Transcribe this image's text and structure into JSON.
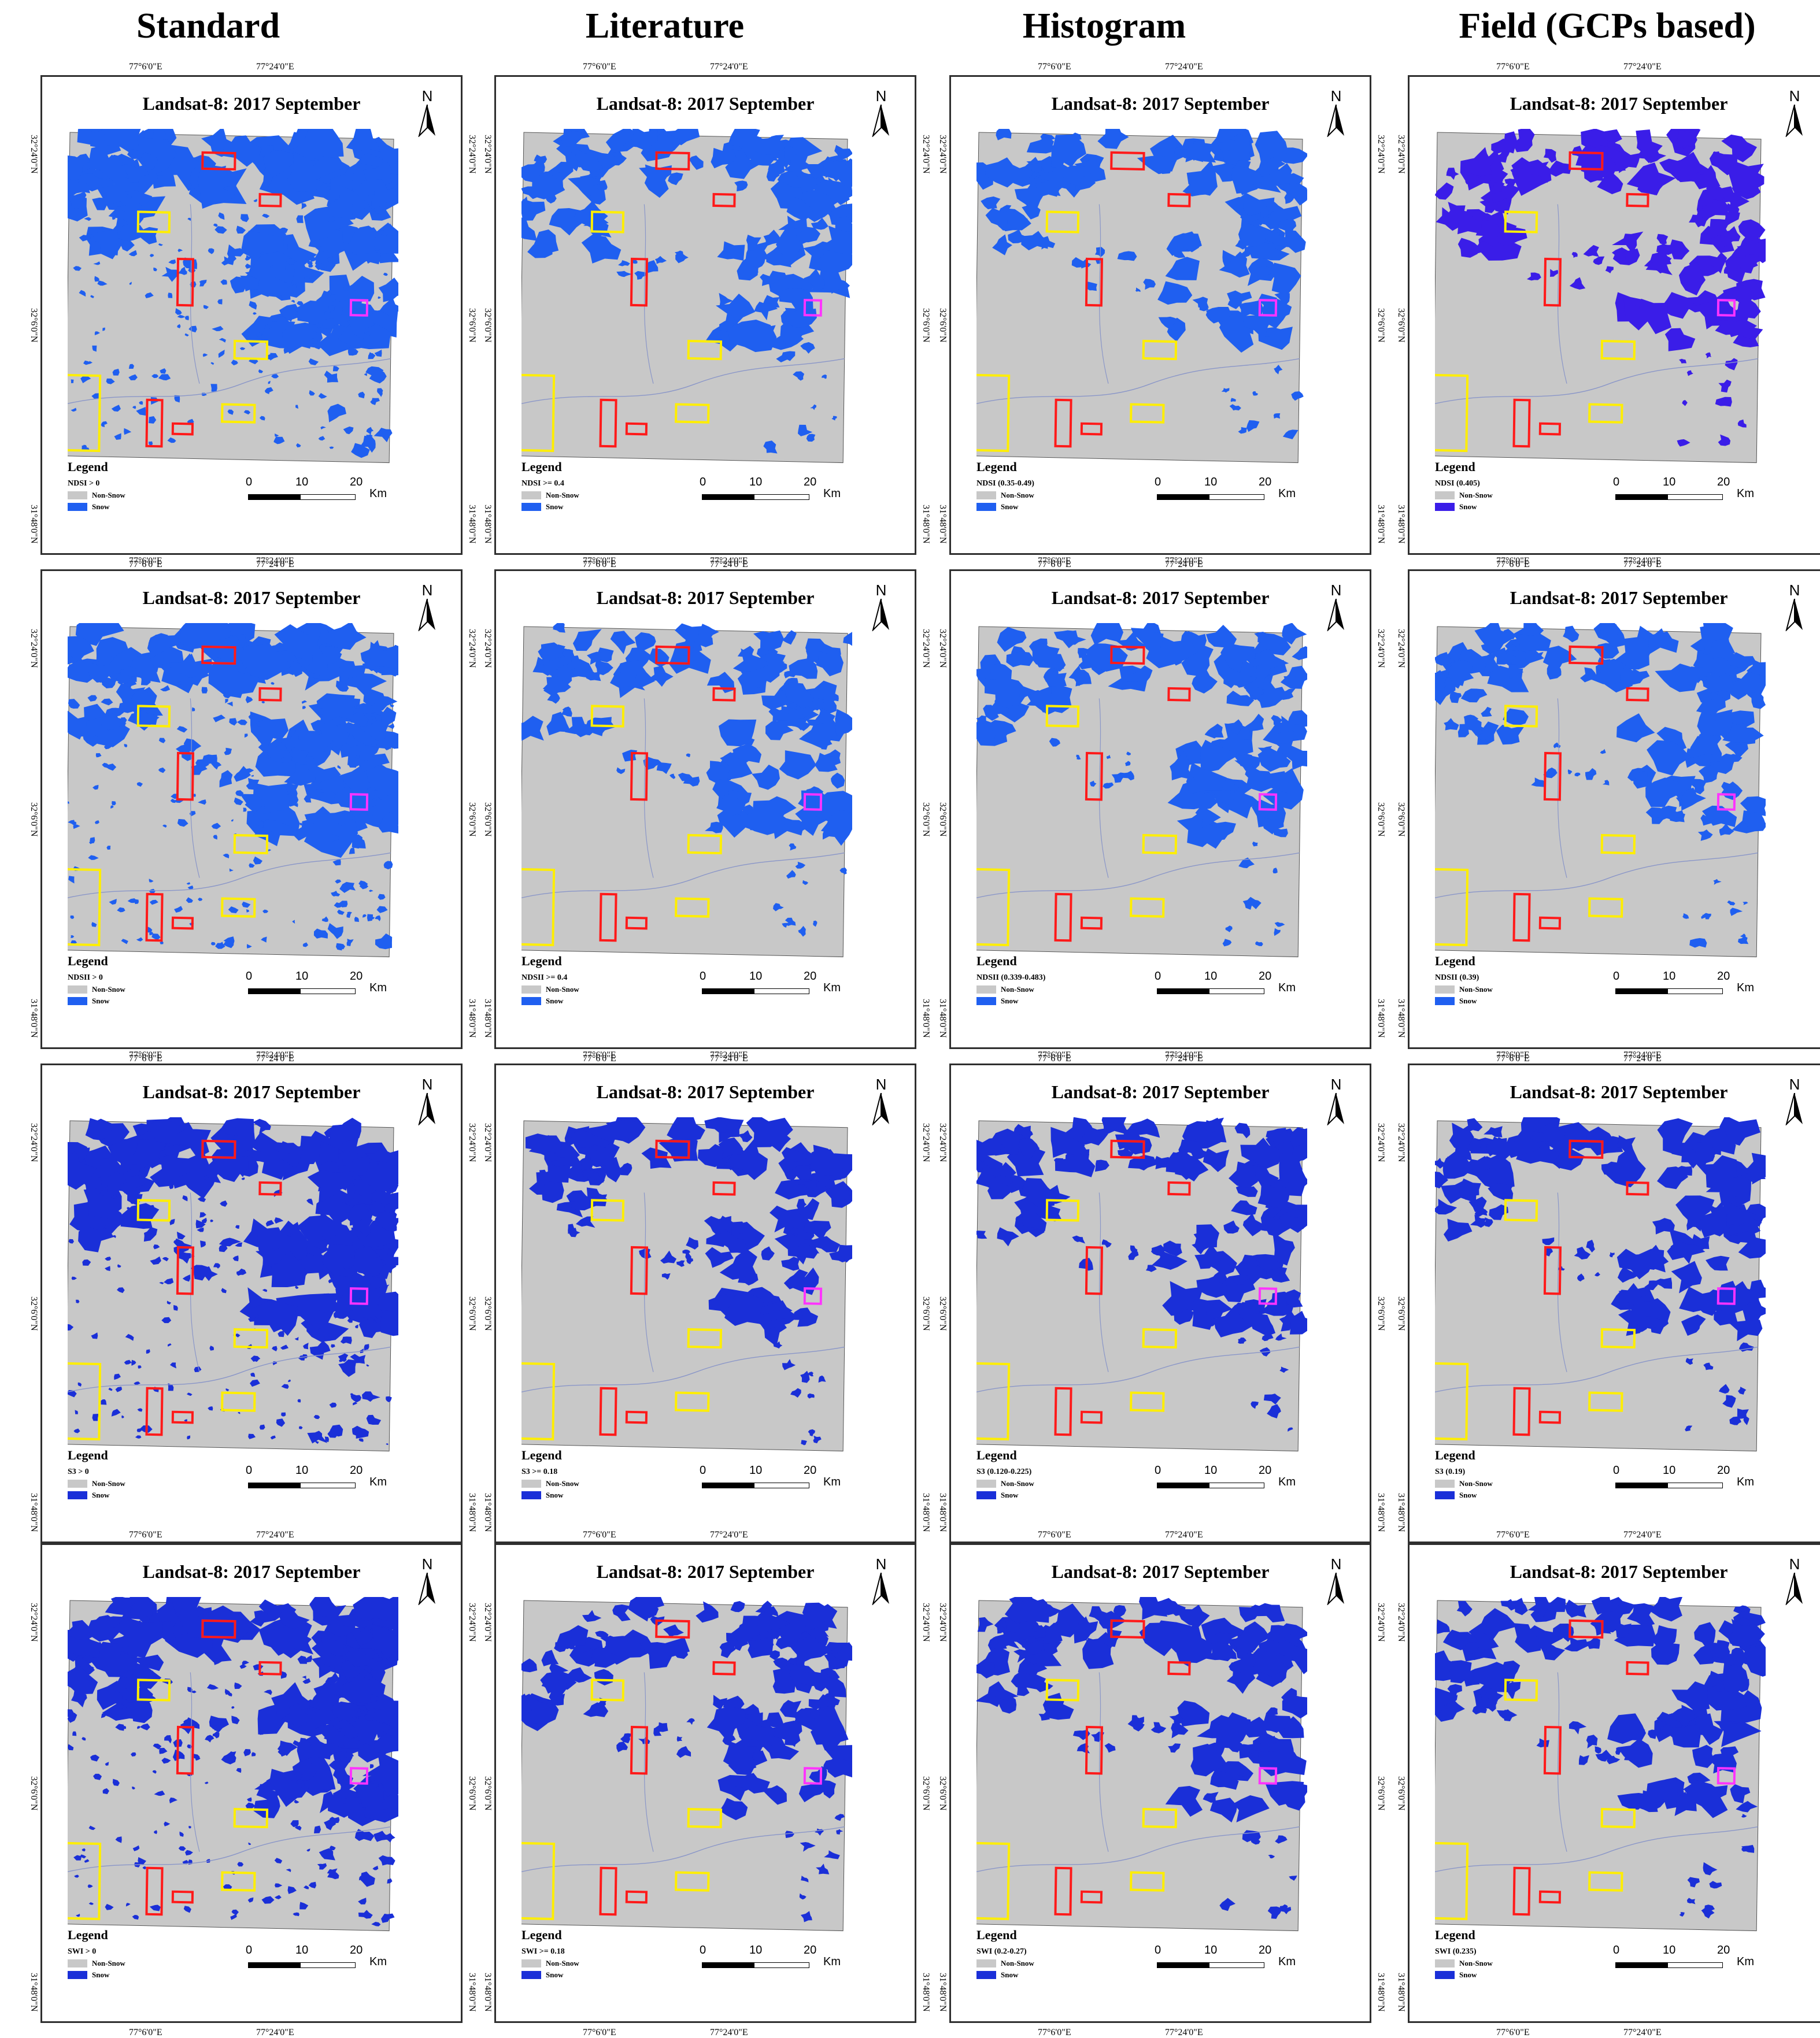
{
  "columns": [
    "Standard",
    "Literature",
    "Histogram",
    "Field (GCPs based)"
  ],
  "panel_title": "Landsat-8: 2017 September",
  "north_label": "N",
  "coords": {
    "lon_left": "77°6'0\"E",
    "lon_right": "77°24'0\"E",
    "lat_top": "32°24'0\"N",
    "lat_mid": "32°6'0\"N",
    "lat_bot": "31°48'0\"N"
  },
  "legend": {
    "title": "Legend",
    "non_snow": "Non-Snow",
    "snow": "Snow"
  },
  "scale": {
    "labels": [
      "0",
      "10",
      "20"
    ],
    "unit": "Km"
  },
  "colors": {
    "non_snow": "#c8c8c8",
    "snow_light": "#1f5ff0",
    "snow_dark": "#1a2fd8",
    "snow_violet": "#3a1de8",
    "box_red": "#ff1a1a",
    "box_yellow": "#ffee00",
    "box_magenta": "#ff33ff"
  },
  "rows": [
    {
      "index": "NDSI",
      "thresholds": [
        "NDSI > 0",
        "NDSI >= 0.4",
        "NDSI (0.35-0.49)",
        "NDSI (0.405)"
      ]
    },
    {
      "index": "NDSII",
      "thresholds": [
        "NDSII > 0",
        "NDSII >= 0.4",
        "NDSII (0.339-0.483)",
        "NDSII (0.39)"
      ]
    },
    {
      "index": "S3",
      "thresholds": [
        "S3 > 0",
        "S3 >= 0.18",
        "S3 (0.120-0.225)",
        "S3 (0.19)"
      ]
    },
    {
      "index": "SWI",
      "thresholds": [
        "SWI > 0",
        "SWI >= 0.18",
        "SWI (0.2-0.27)",
        "SWI (0.235)"
      ]
    }
  ]
}
